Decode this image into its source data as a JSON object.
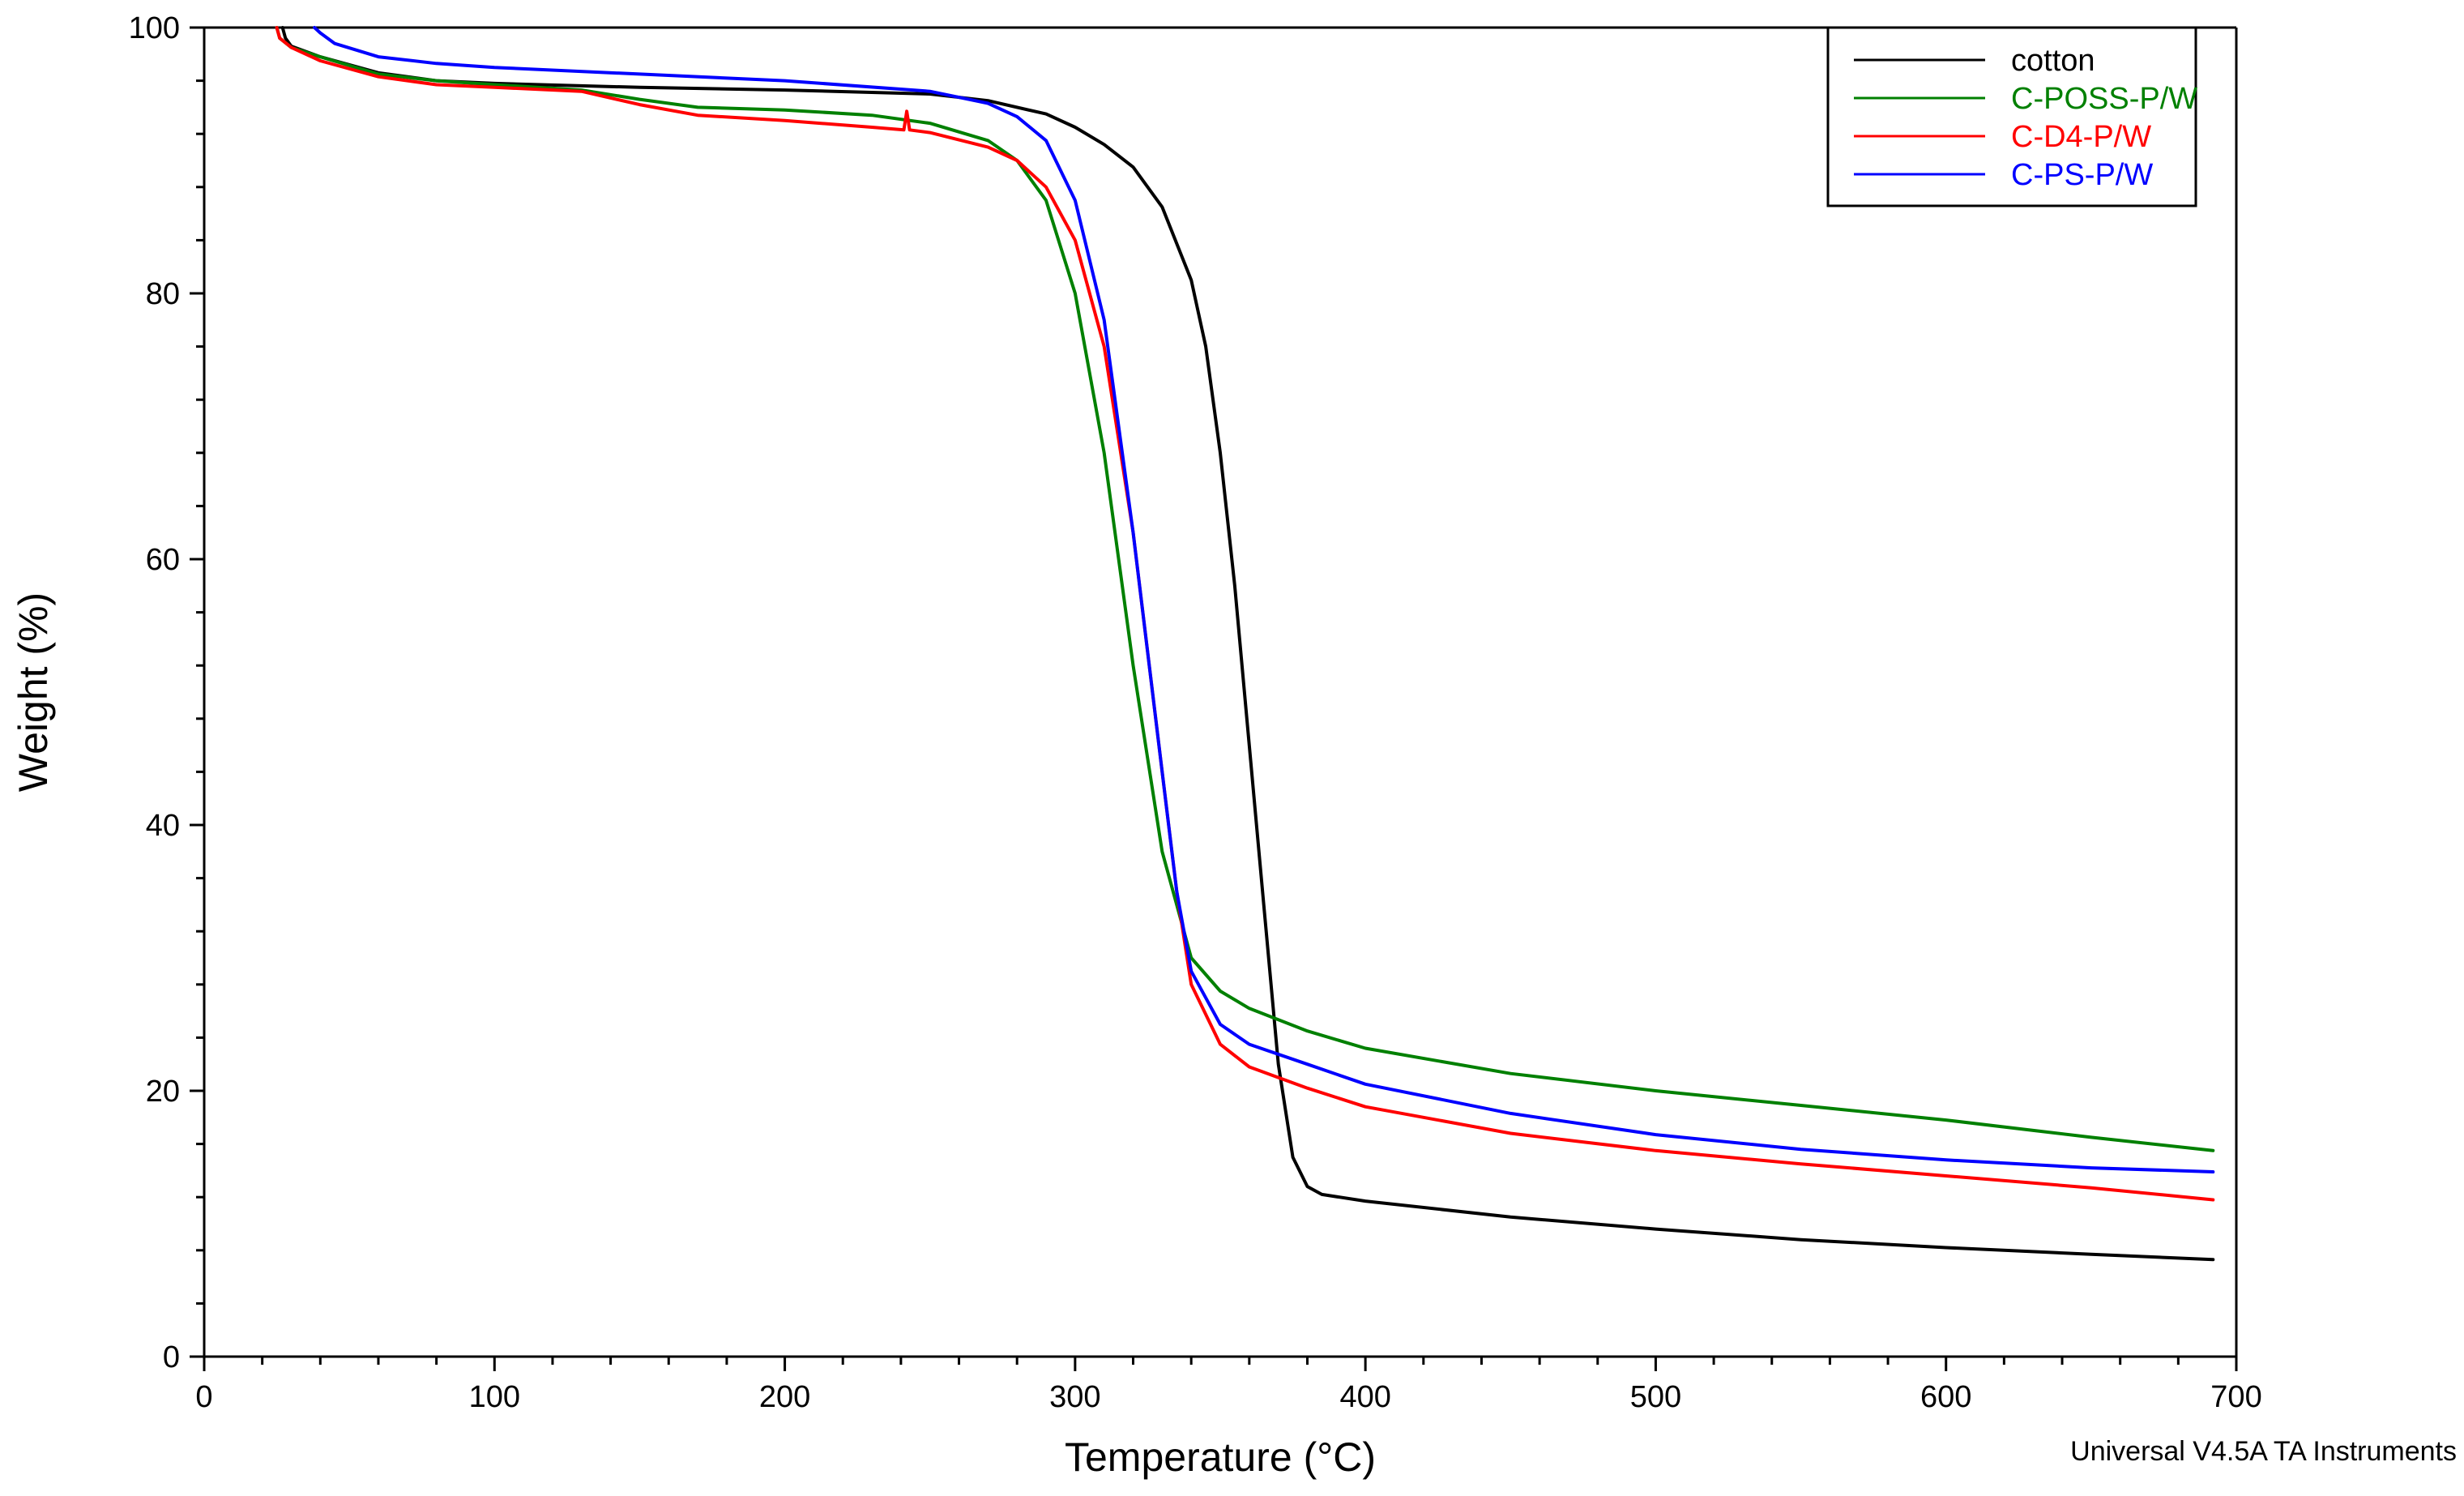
{
  "chart_data": {
    "type": "line",
    "title": "",
    "xlabel": "Temperature (°C)",
    "ylabel": "Weight (%)",
    "xlim": [
      0,
      700
    ],
    "ylim": [
      0,
      100
    ],
    "xticks": [
      0,
      100,
      200,
      300,
      400,
      500,
      600,
      700
    ],
    "yticks": [
      0,
      20,
      40,
      60,
      80,
      100
    ],
    "grid": false,
    "legend_position": "top-right",
    "footer": "Universal V4.5A TA Instruments",
    "series": [
      {
        "name": "cotton",
        "color": "#000000",
        "points": [
          [
            27,
            100
          ],
          [
            28,
            99.2
          ],
          [
            30,
            98.6
          ],
          [
            40,
            97.8
          ],
          [
            60,
            96.6
          ],
          [
            80,
            96.0
          ],
          [
            100,
            95.8
          ],
          [
            150,
            95.5
          ],
          [
            200,
            95.3
          ],
          [
            250,
            95.0
          ],
          [
            270,
            94.5
          ],
          [
            290,
            93.5
          ],
          [
            300,
            92.5
          ],
          [
            310,
            91.2
          ],
          [
            320,
            89.5
          ],
          [
            330,
            86.5
          ],
          [
            340,
            81
          ],
          [
            345,
            76
          ],
          [
            350,
            68
          ],
          [
            355,
            58
          ],
          [
            360,
            46
          ],
          [
            365,
            34
          ],
          [
            370,
            22
          ],
          [
            375,
            15
          ],
          [
            380,
            12.8
          ],
          [
            385,
            12.2
          ],
          [
            400,
            11.7
          ],
          [
            450,
            10.5
          ],
          [
            500,
            9.6
          ],
          [
            550,
            8.8
          ],
          [
            600,
            8.2
          ],
          [
            650,
            7.7
          ],
          [
            692,
            7.3
          ]
        ]
      },
      {
        "name": "C-POSS-P/W",
        "color": "#008000",
        "points": [
          [
            25,
            100
          ],
          [
            26,
            99.2
          ],
          [
            30,
            98.5
          ],
          [
            40,
            97.8
          ],
          [
            60,
            96.5
          ],
          [
            80,
            96.0
          ],
          [
            100,
            95.7
          ],
          [
            130,
            95.3
          ],
          [
            150,
            94.6
          ],
          [
            170,
            94.0
          ],
          [
            200,
            93.8
          ],
          [
            230,
            93.4
          ],
          [
            250,
            92.8
          ],
          [
            270,
            91.5
          ],
          [
            280,
            90.0
          ],
          [
            290,
            87
          ],
          [
            300,
            80
          ],
          [
            310,
            68
          ],
          [
            320,
            52
          ],
          [
            330,
            38
          ],
          [
            340,
            30
          ],
          [
            350,
            27.5
          ],
          [
            360,
            26.2
          ],
          [
            380,
            24.5
          ],
          [
            400,
            23.2
          ],
          [
            450,
            21.3
          ],
          [
            500,
            20.0
          ],
          [
            550,
            18.9
          ],
          [
            600,
            17.8
          ],
          [
            650,
            16.5
          ],
          [
            692,
            15.5
          ]
        ]
      },
      {
        "name": "C-D4-P/W",
        "color": "#ff0000",
        "points": [
          [
            25,
            100
          ],
          [
            26,
            99.2
          ],
          [
            30,
            98.5
          ],
          [
            40,
            97.5
          ],
          [
            60,
            96.3
          ],
          [
            80,
            95.7
          ],
          [
            100,
            95.5
          ],
          [
            130,
            95.2
          ],
          [
            150,
            94.2
          ],
          [
            170,
            93.4
          ],
          [
            200,
            93.0
          ],
          [
            230,
            92.5
          ],
          [
            241,
            92.3
          ],
          [
            242,
            93.7
          ],
          [
            243,
            92.3
          ],
          [
            250,
            92.1
          ],
          [
            270,
            91.0
          ],
          [
            280,
            90.0
          ],
          [
            290,
            88
          ],
          [
            300,
            84
          ],
          [
            310,
            76
          ],
          [
            320,
            62
          ],
          [
            330,
            44
          ],
          [
            335,
            35
          ],
          [
            340,
            28
          ],
          [
            350,
            23.5
          ],
          [
            360,
            21.8
          ],
          [
            380,
            20.2
          ],
          [
            400,
            18.8
          ],
          [
            450,
            16.8
          ],
          [
            500,
            15.5
          ],
          [
            550,
            14.5
          ],
          [
            600,
            13.6
          ],
          [
            650,
            12.7
          ],
          [
            692,
            11.8
          ]
        ]
      },
      {
        "name": "C-PS-P/W",
        "color": "#0000ff",
        "points": [
          [
            38,
            100
          ],
          [
            40,
            99.6
          ],
          [
            45,
            98.8
          ],
          [
            60,
            97.8
          ],
          [
            80,
            97.3
          ],
          [
            100,
            97.0
          ],
          [
            150,
            96.5
          ],
          [
            200,
            96.0
          ],
          [
            250,
            95.2
          ],
          [
            270,
            94.3
          ],
          [
            280,
            93.3
          ],
          [
            290,
            91.5
          ],
          [
            300,
            87
          ],
          [
            310,
            78
          ],
          [
            320,
            62
          ],
          [
            330,
            44
          ],
          [
            335,
            35
          ],
          [
            340,
            29
          ],
          [
            350,
            25
          ],
          [
            360,
            23.5
          ],
          [
            380,
            22.0
          ],
          [
            400,
            20.5
          ],
          [
            450,
            18.3
          ],
          [
            500,
            16.7
          ],
          [
            550,
            15.6
          ],
          [
            600,
            14.8
          ],
          [
            650,
            14.2
          ],
          [
            692,
            13.9
          ]
        ]
      }
    ]
  }
}
